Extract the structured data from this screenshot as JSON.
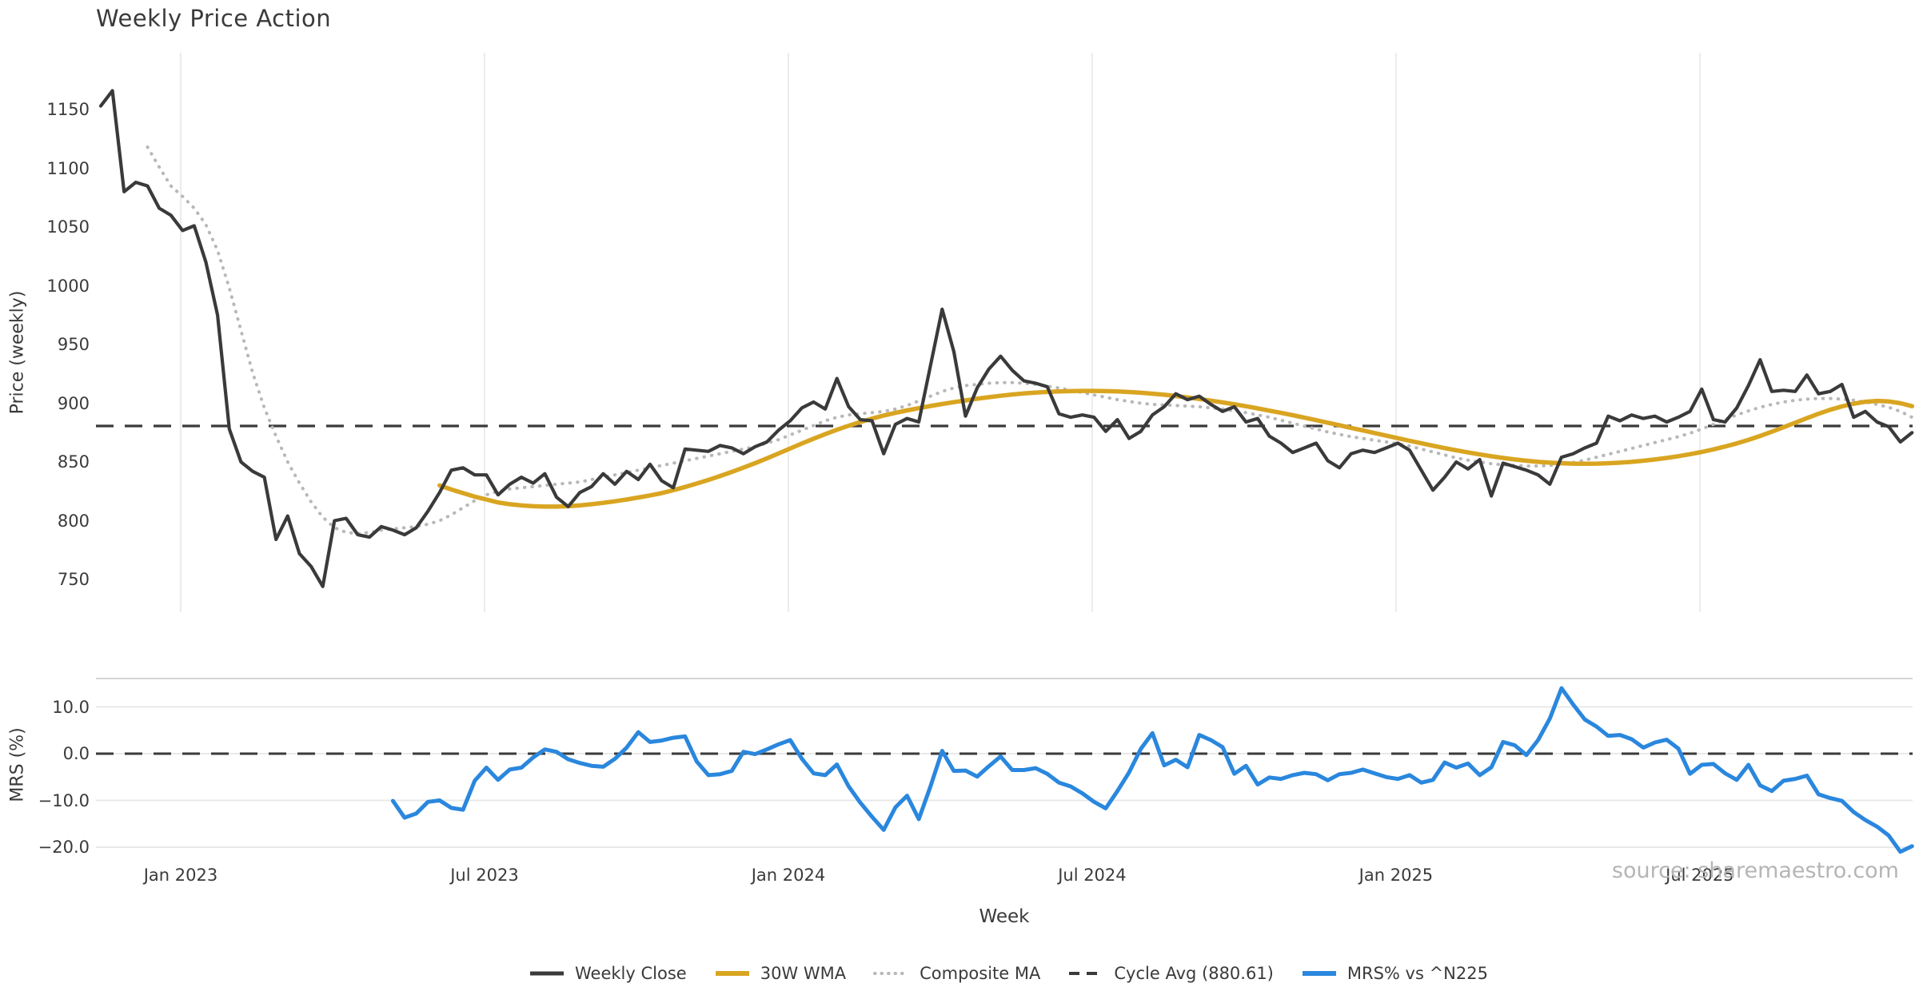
{
  "title": "Weekly Price Action",
  "watermark": "source: sharemaestro.com",
  "colors": {
    "dark": "#3a3a3a",
    "gold": "#d9a521",
    "dotted_gray": "#b8b8b8",
    "blue": "#2a87dd",
    "gridline": "#ececec",
    "panel_border": "#d5d5d5",
    "watermark_gray": "#b5b5b5"
  },
  "chart_data": {
    "type": "line",
    "title": "Weekly Price Action",
    "grid": "vertical-on-price-panel, horizontal-on-mrs-panel",
    "legend_position": "bottom-center",
    "x_axis": {
      "label": "Week",
      "tick_labels": [
        "Jan 2023",
        "Jul 2023",
        "Jan 2024",
        "Jul 2024",
        "Jan 2025",
        "Jul 2025"
      ],
      "tick_weeks": [
        6.84,
        32.84,
        58.84,
        84.84,
        110.84,
        136.84
      ],
      "weeks_total": 156
    },
    "panels": [
      {
        "id": "price",
        "ylabel": "Price (weekly)",
        "ylim": [
          735,
          1185
        ],
        "ytick_labels": [
          "1150",
          "1100",
          "1050",
          "1000",
          "950",
          "900",
          "850",
          "800",
          "750"
        ],
        "ytick_values": [
          1150,
          1100,
          1050,
          1000,
          950,
          900,
          850,
          800,
          750
        ],
        "hline": {
          "name": "Cycle Avg (880.61)",
          "value": 880.61,
          "style": "dashed",
          "color": "#3a3a3a"
        },
        "series": [
          {
            "name": "Weekly Close",
            "style": "solid",
            "color": "#3a3a3a",
            "width": 4.2,
            "start_week": 0,
            "values": [
              1153,
              1166,
              1080,
              1088,
              1085,
              1066,
              1060,
              1047,
              1051,
              1020,
              975,
              878,
              850,
              842,
              837,
              784,
              804,
              772,
              761,
              744,
              800,
              802,
              788,
              786,
              795,
              792,
              788,
              794,
              808,
              824,
              843,
              845,
              839,
              839,
              822,
              831,
              837,
              832,
              840,
              820,
              812,
              824,
              829,
              840,
              831,
              842,
              835,
              848,
              834,
              828,
              861,
              860,
              859,
              864,
              862,
              857,
              863,
              867,
              877,
              885,
              896,
              901,
              895,
              921,
              897,
              886,
              885,
              857,
              882,
              887,
              884,
              932,
              980,
              944,
              889,
              913,
              929,
              940,
              928,
              919,
              917,
              914,
              891,
              888,
              890,
              888,
              876,
              886,
              870,
              876,
              890,
              897,
              908,
              903,
              906,
              899,
              893,
              897,
              884,
              887,
              872,
              866,
              858,
              862,
              866,
              851,
              845,
              857,
              860,
              858,
              862,
              866,
              860,
              843,
              826,
              837,
              850,
              844,
              852,
              821,
              849,
              846,
              843,
              839,
              831,
              854,
              857,
              862,
              866,
              889,
              885,
              890,
              887,
              889,
              884,
              888,
              893,
              912,
              886,
              884,
              896,
              915,
              937,
              910,
              911,
              910,
              924,
              908,
              910,
              916,
              888,
              893,
              884,
              880,
              867,
              875
            ]
          },
          {
            "name": "30W WMA",
            "style": "solid",
            "color": "#d9a521",
            "width": 5.5,
            "start_week": 29,
            "values": [
              830,
              826.5,
              823.5,
              820.5,
              818,
              815.5,
              814,
              813,
              812.3,
              812,
              812,
              812.3,
              813,
              814,
              815.2,
              816.5,
              818,
              819.7,
              821.5,
              823.5,
              826,
              828.7,
              831.6,
              834.7,
              838,
              841.5,
              845.2,
              849,
              853,
              857.2,
              861.5,
              865.7,
              869.8,
              873.7,
              877.4,
              880.8,
              884,
              886.9,
              889.5,
              891.8,
              893.9,
              895.8,
              897.6,
              899.3,
              900.9,
              902.4,
              903.8,
              905.1,
              906.3,
              907.4,
              908.3,
              909,
              909.6,
              910,
              910.3,
              910.5,
              910.5,
              910.3,
              910,
              909.5,
              908.9,
              908.1,
              907.2,
              906.1,
              904.9,
              903.6,
              902.2,
              900.7,
              899.1,
              897.4,
              895.6,
              893.7,
              891.8,
              889.8,
              887.7,
              885.6,
              883.4,
              881.2,
              879,
              876.8,
              874.6,
              872.4,
              870.2,
              868,
              865.9,
              863.8,
              861.8,
              859.9,
              858.1,
              856.4,
              854.8,
              853.4,
              852.1,
              851,
              850.1,
              849.4,
              848.9,
              848.6,
              848.5,
              848.6,
              848.9,
              849.4,
              850.1,
              851,
              852.1,
              853.4,
              854.9,
              856.6,
              858.5,
              860.7,
              863.1,
              865.8,
              868.8,
              872.1,
              875.7,
              879.5,
              883.4,
              887.3,
              891,
              894.4,
              897.3,
              899.6,
              901.2,
              902,
              901.5,
              900,
              897.5
            ]
          },
          {
            "name": "Composite MA",
            "style": "dotted",
            "color": "#b8b8b8",
            "width": 4,
            "start_week": 4,
            "values": [
              1118,
              1101,
              1085,
              1076,
              1066,
              1052,
              1030,
              998,
              962,
              926,
              896,
              872,
              850,
              832,
              816,
              803,
              794,
              790,
              789,
              790,
              792,
              793,
              794,
              795,
              797,
              800,
              805,
              811,
              817,
              822,
              825,
              827,
              828,
              829,
              830,
              831,
              832,
              833,
              835,
              837,
              839,
              841,
              843,
              845,
              847,
              849,
              851,
              853,
              855,
              857,
              859,
              861,
              863,
              866,
              869,
              873,
              877,
              881,
              885,
              888,
              890,
              891,
              892,
              893,
              895,
              898,
              902,
              906,
              910,
              913,
              915,
              916,
              917,
              917.5,
              917.5,
              917,
              916,
              914.5,
              913,
              911,
              909,
              907,
              905,
              903,
              901.5,
              900,
              899,
              898.5,
              898,
              897.5,
              897,
              896,
              895,
              893.5,
              892,
              890,
              888,
              885.5,
              883,
              880.5,
              878,
              875.5,
              873.5,
              871.5,
              870,
              868.5,
              867,
              865.5,
              863.5,
              861,
              858.5,
              856,
              853.5,
              851.5,
              850,
              848.5,
              847.5,
              847,
              846.5,
              846.5,
              847,
              848,
              849.5,
              851.5,
              854,
              856.5,
              859,
              861.5,
              864,
              866.5,
              869,
              871.5,
              874.5,
              878,
              882,
              886,
              890,
              893.5,
              896.5,
              899,
              901,
              902.5,
              903.5,
              904,
              904,
              903.5,
              902.5,
              901,
              899,
              896.5,
              893,
              888
            ]
          }
        ]
      },
      {
        "id": "mrs",
        "ylabel": "MRS (%)",
        "ylim": [
          -22,
          16
        ],
        "ytick_labels": [
          "10.0",
          "0.0",
          "−10.0",
          "−20.0"
        ],
        "ytick_values": [
          10,
          0,
          -10,
          -20
        ],
        "hline": {
          "name": "Zero line",
          "value": 0.0,
          "style": "dashed",
          "color": "#3a3a3a"
        },
        "series": [
          {
            "name": "MRS% vs ^N225",
            "style": "solid",
            "color": "#2a87dd",
            "width": 5,
            "start_week": 25,
            "values": [
              -10.1,
              -13.7,
              -12.8,
              -10.3,
              -10.0,
              -11.6,
              -12.0,
              -5.8,
              -3.0,
              -5.6,
              -3.4,
              -3.0,
              -0.8,
              0.9,
              0.4,
              -1.2,
              -2.0,
              -2.6,
              -2.8,
              -1.1,
              1.3,
              4.6,
              2.5,
              2.8,
              3.4,
              3.7,
              -1.7,
              -4.6,
              -4.4,
              -3.7,
              0.4,
              -0.1,
              0.9,
              2.0,
              2.9,
              -1.1,
              -4.2,
              -4.6,
              -2.3,
              -7.0,
              -10.5,
              -13.5,
              -16.3,
              -11.5,
              -9.0,
              -14.0,
              -7.0,
              0.6,
              -3.7,
              -3.6,
              -4.9,
              -2.7,
              -0.6,
              -3.5,
              -3.5,
              -3.1,
              -4.3,
              -6.2,
              -7.0,
              -8.5,
              -10.3,
              -11.7,
              -8.0,
              -4.0,
              1.0,
              4.4,
              -2.5,
              -1.3,
              -2.9,
              4.0,
              2.9,
              1.4,
              -4.3,
              -2.6,
              -6.6,
              -5.1,
              -5.4,
              -4.6,
              -4.1,
              -4.4,
              -5.7,
              -4.4,
              -4.1,
              -3.4,
              -4.2,
              -5.0,
              -5.4,
              -4.6,
              -6.2,
              -5.6,
              -1.9,
              -3.0,
              -2.1,
              -4.6,
              -2.9,
              2.5,
              1.8,
              -0.3,
              2.9,
              7.5,
              14.0,
              10.5,
              7.3,
              5.8,
              3.8,
              4.0,
              3.1,
              1.3,
              2.4,
              3.0,
              1.1,
              -4.3,
              -2.4,
              -2.2,
              -4.2,
              -5.6,
              -2.4,
              -6.8,
              -8.0,
              -5.8,
              -5.4,
              -4.7,
              -8.7,
              -9.5,
              -10.1,
              -12.5,
              -14.2,
              -15.6,
              -17.5,
              -21.0,
              -19.8
            ]
          }
        ]
      }
    ],
    "legend": [
      {
        "label": "Weekly Close",
        "style": "solid",
        "color": "#3a3a3a",
        "width": 5
      },
      {
        "label": "30W WMA",
        "style": "solid",
        "color": "#d9a521",
        "width": 6
      },
      {
        "label": "Composite MA",
        "style": "dotted",
        "color": "#b8b8b8",
        "width": 4
      },
      {
        "label": "Cycle Avg (880.61)",
        "style": "dashed",
        "color": "#3a3a3a",
        "width": 4
      },
      {
        "label": "MRS% vs ^N225",
        "style": "solid",
        "color": "#2a87dd",
        "width": 6
      }
    ]
  }
}
